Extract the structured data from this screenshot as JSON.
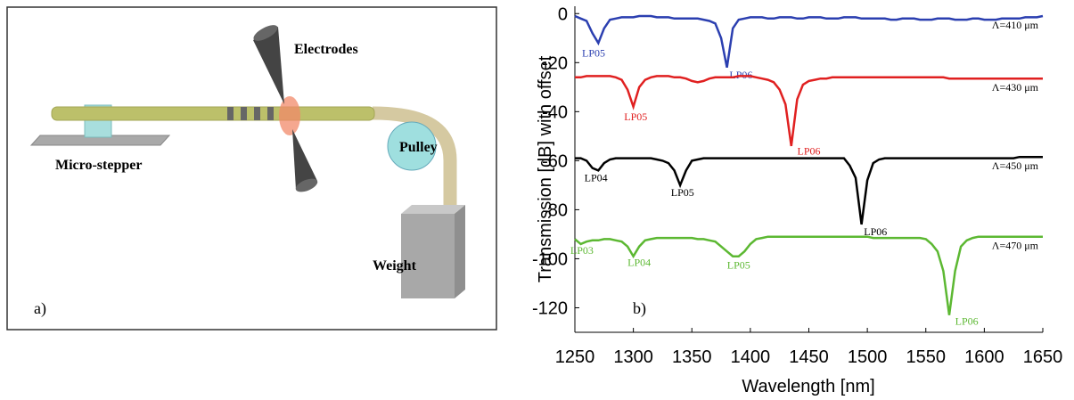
{
  "diagram": {
    "electrodes": "Electrodes",
    "micro_stepper": "Micro-stepper",
    "pulley": "Pulley",
    "weight": "Weight",
    "panel_label": "a)"
  },
  "chart_data": {
    "type": "line",
    "panel_label": "b)",
    "x_label": "Wavelength [nm]",
    "y_label": "Transmission [dB] with offset",
    "xlim": [
      1250,
      1650
    ],
    "ylim": [
      -130,
      3
    ],
    "xticks": [
      1250,
      1300,
      1350,
      1400,
      1450,
      1500,
      1550,
      1600,
      1650
    ],
    "yticks": [
      0,
      -20,
      -40,
      -60,
      -80,
      -100,
      -120
    ],
    "x": [
      1250,
      1255,
      1260,
      1265,
      1270,
      1275,
      1280,
      1285,
      1290,
      1295,
      1300,
      1305,
      1310,
      1315,
      1320,
      1325,
      1330,
      1335,
      1340,
      1345,
      1350,
      1355,
      1360,
      1365,
      1370,
      1375,
      1380,
      1385,
      1390,
      1395,
      1400,
      1405,
      1410,
      1415,
      1420,
      1425,
      1430,
      1435,
      1440,
      1445,
      1450,
      1455,
      1460,
      1465,
      1470,
      1475,
      1480,
      1485,
      1490,
      1495,
      1500,
      1505,
      1510,
      1515,
      1520,
      1525,
      1530,
      1535,
      1540,
      1545,
      1550,
      1555,
      1560,
      1565,
      1570,
      1575,
      1580,
      1585,
      1590,
      1595,
      1600,
      1605,
      1610,
      1615,
      1620,
      1625,
      1630,
      1635,
      1640,
      1645,
      1650
    ],
    "series": [
      {
        "name": "Λ=410 μm",
        "color": "#2b3fb0",
        "values": [
          -1,
          -2,
          -3,
          -8,
          -12,
          -6,
          -2.5,
          -2,
          -1.5,
          -1.5,
          -1.5,
          -1,
          -1,
          -1,
          -1.5,
          -1.5,
          -1.5,
          -2,
          -2,
          -2,
          -2,
          -2,
          -2.5,
          -3,
          -4,
          -10,
          -22,
          -6,
          -2.5,
          -2,
          -1.5,
          -1.5,
          -1.5,
          -2,
          -2,
          -1.5,
          -1.5,
          -1.5,
          -2,
          -2,
          -1.5,
          -1.5,
          -1.5,
          -2,
          -2,
          -2,
          -1.5,
          -1.5,
          -1.5,
          -2,
          -2,
          -2,
          -2,
          -2,
          -2.5,
          -2.5,
          -2,
          -2,
          -2,
          -2.5,
          -2.5,
          -2.5,
          -2,
          -2,
          -2,
          -2.5,
          -2.5,
          -2.5,
          -2,
          -2,
          -2.5,
          -2.5,
          -2.5,
          -2,
          -2,
          -2,
          -2,
          -1.5,
          -1.5,
          -1.5,
          -1
        ],
        "annotations": [
          {
            "text": "LP05",
            "x": 1266,
            "y": -16
          },
          {
            "text": "LP06",
            "x": 1392,
            "y": -25
          }
        ]
      },
      {
        "name": "Λ=430 μm",
        "color": "#e02020",
        "values": [
          -26,
          -26,
          -25.5,
          -25.5,
          -25.5,
          -25.5,
          -25.5,
          -26,
          -27,
          -31,
          -38,
          -30,
          -27,
          -26,
          -25.5,
          -25.5,
          -25.5,
          -26,
          -26,
          -26.5,
          -27.5,
          -28,
          -27.5,
          -26.5,
          -26,
          -26,
          -26,
          -26,
          -25.5,
          -25.5,
          -25.5,
          -26,
          -26.5,
          -27,
          -28,
          -31,
          -37,
          -54,
          -35,
          -29,
          -27.5,
          -27,
          -26.5,
          -26.5,
          -26,
          -26,
          -26,
          -26,
          -26,
          -26,
          -26,
          -26,
          -26,
          -26,
          -26,
          -26,
          -26,
          -26,
          -26,
          -26,
          -26,
          -26,
          -26,
          -26,
          -26.5,
          -26.5,
          -26.5,
          -26.5,
          -26.5,
          -26.5,
          -26.5,
          -26.5,
          -26.5,
          -26.5,
          -26.5,
          -26.5,
          -26.5,
          -26.5,
          -26.5,
          -26.5,
          -26.5
        ],
        "annotations": [
          {
            "text": "LP05",
            "x": 1302,
            "y": -42
          },
          {
            "text": "LP06",
            "x": 1450,
            "y": -56
          }
        ]
      },
      {
        "name": "Λ=450 μm",
        "color": "#000000",
        "values": [
          -59,
          -59,
          -60,
          -63,
          -64,
          -61,
          -59.5,
          -59,
          -59,
          -59,
          -59,
          -59,
          -59,
          -59,
          -59.5,
          -60,
          -61,
          -64,
          -70,
          -64,
          -60,
          -59.5,
          -59,
          -59,
          -59,
          -59,
          -59,
          -59,
          -59,
          -59,
          -59,
          -59,
          -59,
          -59,
          -59,
          -59,
          -59,
          -59,
          -59,
          -59,
          -59,
          -59,
          -59,
          -59,
          -59,
          -59,
          -59,
          -62,
          -67,
          -86,
          -68,
          -61,
          -59.5,
          -59,
          -59,
          -59,
          -59,
          -59,
          -59,
          -59,
          -59,
          -59,
          -59,
          -59,
          -59,
          -59,
          -59,
          -59,
          -59,
          -59,
          -59,
          -59,
          -59,
          -59,
          -59,
          -59,
          -58.5,
          -58.5,
          -58.5,
          -58.5,
          -58.5
        ],
        "annotations": [
          {
            "text": "LP04",
            "x": 1268,
            "y": -67
          },
          {
            "text": "LP05",
            "x": 1342,
            "y": -73
          },
          {
            "text": "LP06",
            "x": 1507,
            "y": -89
          }
        ]
      },
      {
        "name": "Λ=470 μm",
        "color": "#5cb832",
        "values": [
          -92,
          -94,
          -93,
          -92.5,
          -92.5,
          -92,
          -92,
          -92.5,
          -93,
          -95,
          -99,
          -95,
          -92.5,
          -92,
          -91.5,
          -91.5,
          -91.5,
          -91.5,
          -91.5,
          -91.5,
          -91.5,
          -92,
          -92,
          -92.5,
          -93,
          -95,
          -97,
          -99,
          -99,
          -97,
          -94,
          -92,
          -91.5,
          -91,
          -91,
          -91,
          -91,
          -91,
          -91,
          -91,
          -91,
          -91,
          -91,
          -91,
          -91,
          -91,
          -91,
          -91,
          -91,
          -91,
          -91,
          -91.5,
          -91.5,
          -91.5,
          -91.5,
          -91.5,
          -91.5,
          -91.5,
          -91.5,
          -91.5,
          -92,
          -94,
          -97,
          -105,
          -123,
          -105,
          -95,
          -92.5,
          -91.5,
          -91,
          -91,
          -91,
          -91,
          -91,
          -91,
          -91,
          -91,
          -91,
          -91,
          -91,
          -91
        ],
        "annotations": [
          {
            "text": "LP03",
            "x": 1256,
            "y": -96.5
          },
          {
            "text": "LP04",
            "x": 1305,
            "y": -101.5
          },
          {
            "text": "LP05",
            "x": 1390,
            "y": -102.5
          },
          {
            "text": "LP06",
            "x": 1585,
            "y": -125.5
          }
        ]
      }
    ]
  }
}
